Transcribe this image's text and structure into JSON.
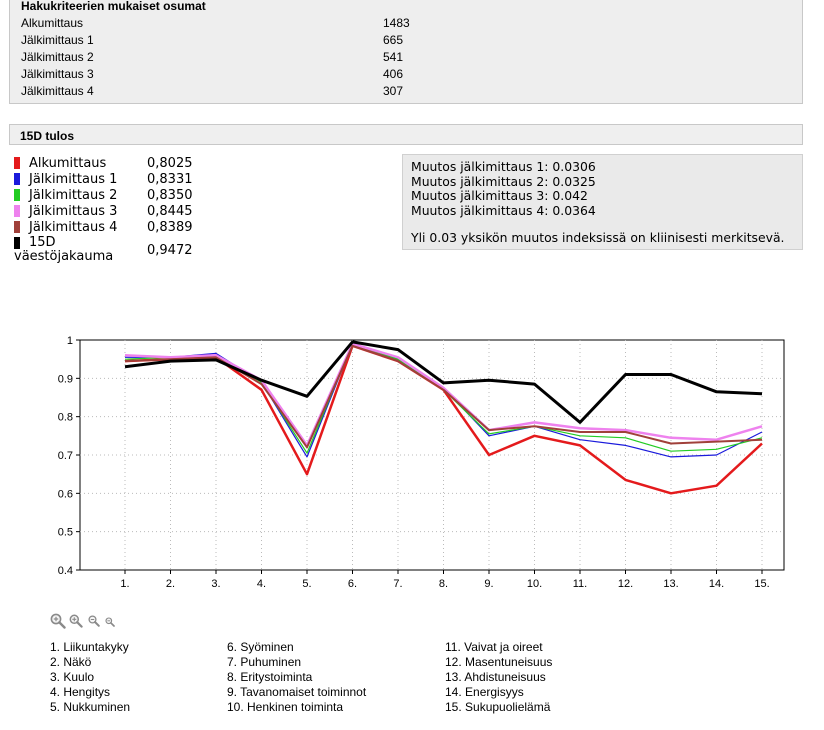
{
  "hits": {
    "title": "Hakukriteerien mukaiset osumat",
    "rows": [
      {
        "label": "Alkumittaus",
        "value": "1483"
      },
      {
        "label": "Jälkimittaus 1",
        "value": "665"
      },
      {
        "label": "Jälkimittaus 2",
        "value": "541"
      },
      {
        "label": "Jälkimittaus 3",
        "value": "406"
      },
      {
        "label": "Jälkimittaus 4",
        "value": "307"
      }
    ]
  },
  "result": {
    "title": "15D tulos",
    "legend": [
      {
        "label": "Alkumittaus",
        "value": "0,8025",
        "color": "#e41a1c"
      },
      {
        "label": "Jälkimittaus 1",
        "value": "0,8331",
        "color": "#1a1adb"
      },
      {
        "label": "Jälkimittaus 2",
        "value": "0,8350",
        "color": "#22cc22"
      },
      {
        "label": "Jälkimittaus 3",
        "value": "0,8445",
        "color": "#ee82ee"
      },
      {
        "label": "Jälkimittaus 4",
        "value": "0,8389",
        "color": "#a0403a"
      },
      {
        "label": "15D väestöjakauma",
        "value": "0,9472",
        "color": "#000000"
      }
    ],
    "changes": [
      "Muutos jälkimittaus 1: 0.0306",
      "Muutos jälkimittaus 2: 0.0325",
      "Muutos jälkimittaus 3: 0.042",
      "Muutos jälkimittaus 4: 0.0364"
    ],
    "note": "Yli 0.03 yksikön muutos indeksissä on kliinisesti merkitsevä."
  },
  "chart_data": {
    "type": "line",
    "x": [
      "1.",
      "2.",
      "3.",
      "4.",
      "5.",
      "6.",
      "7.",
      "8.",
      "9.",
      "10.",
      "11.",
      "12.",
      "13.",
      "14.",
      "15."
    ],
    "ylim": [
      0.4,
      1
    ],
    "yticks": [
      "1",
      "0.9",
      "0.8",
      "0.7",
      "0.6",
      "0.5",
      "0.4"
    ],
    "grid": true,
    "series": [
      {
        "name": "Alkumittaus",
        "color": "#e41a1c",
        "values": [
          0.945,
          0.95,
          0.955,
          0.87,
          0.65,
          0.985,
          0.945,
          0.87,
          0.7,
          0.75,
          0.725,
          0.635,
          0.6,
          0.62,
          0.73
        ]
      },
      {
        "name": "Jälkimittaus 1",
        "color": "#1a1adb",
        "values": [
          0.955,
          0.955,
          0.965,
          0.89,
          0.695,
          0.99,
          0.95,
          0.875,
          0.75,
          0.775,
          0.74,
          0.725,
          0.695,
          0.7,
          0.76
        ]
      },
      {
        "name": "Jälkimittaus 2",
        "color": "#22cc22",
        "values": [
          0.95,
          0.955,
          0.96,
          0.89,
          0.705,
          0.99,
          0.95,
          0.87,
          0.755,
          0.775,
          0.75,
          0.745,
          0.71,
          0.715,
          0.745
        ]
      },
      {
        "name": "Jälkimittaus 3",
        "color": "#ee82ee",
        "values": [
          0.96,
          0.955,
          0.96,
          0.895,
          0.725,
          0.99,
          0.955,
          0.875,
          0.765,
          0.785,
          0.77,
          0.765,
          0.745,
          0.74,
          0.775
        ]
      },
      {
        "name": "Jälkimittaus 4",
        "color": "#a0403a",
        "values": [
          0.945,
          0.95,
          0.955,
          0.885,
          0.72,
          0.985,
          0.945,
          0.87,
          0.765,
          0.775,
          0.76,
          0.76,
          0.73,
          0.735,
          0.74
        ]
      },
      {
        "name": "15D väestöjakauma",
        "color": "#000000",
        "values": [
          0.93,
          0.945,
          0.948,
          0.895,
          0.853,
          0.995,
          0.975,
          0.888,
          0.895,
          0.885,
          0.785,
          0.91,
          0.91,
          0.865,
          0.86
        ]
      }
    ]
  },
  "zoom_icons": [
    "zoom-in-large-icon",
    "zoom-in-icon",
    "zoom-out-icon",
    "zoom-out-small-icon"
  ],
  "axis_legend": [
    "1. Liikuntakyky",
    "2. Näkö",
    "3. Kuulo",
    "4. Hengitys",
    "5. Nukkuminen",
    "6. Syöminen",
    "7. Puhuminen",
    "8. Eritystoiminta",
    "9. Tavanomaiset toiminnot",
    "10. Henkinen toiminta",
    "11. Vaivat ja oireet",
    "12. Masentuneisuus",
    "13. Ahdistuneisuus",
    "14. Energisyys",
    "15. Sukupuolielämä"
  ]
}
